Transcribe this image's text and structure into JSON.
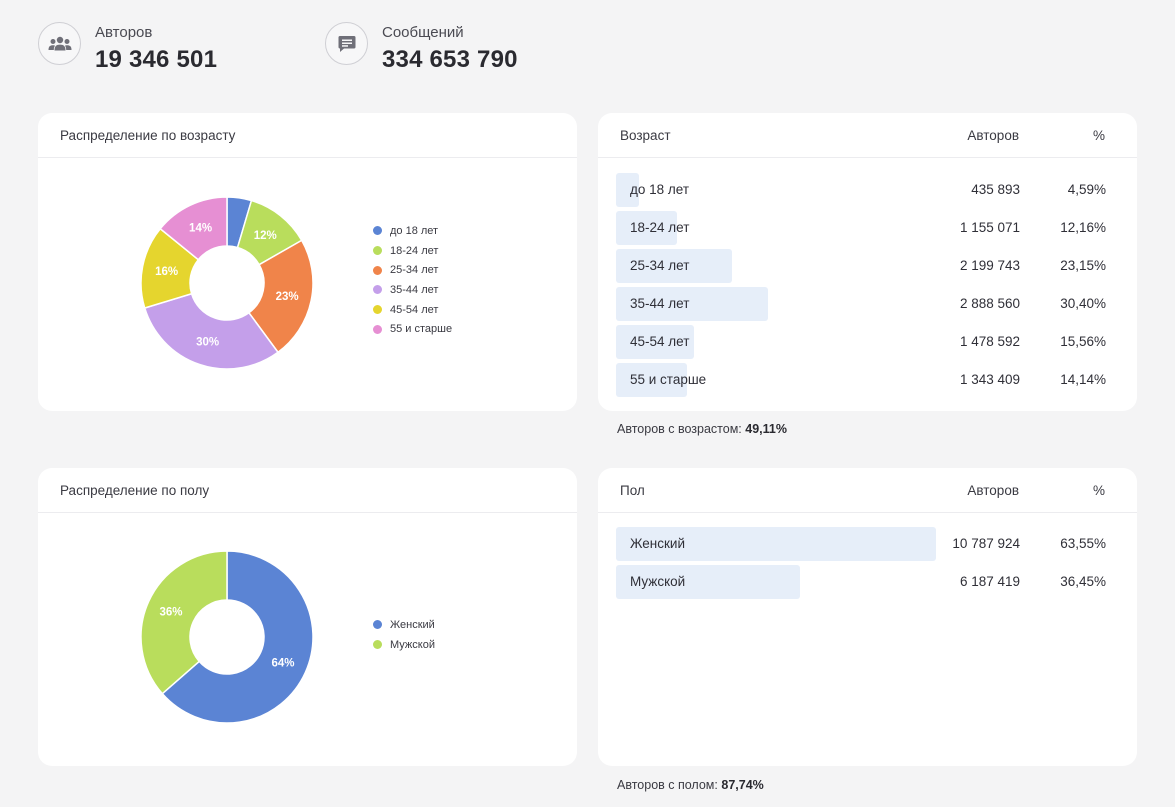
{
  "stats": {
    "authors": {
      "label": "Авторов",
      "value": "19 346 501",
      "icon": "users-icon"
    },
    "messages": {
      "label": "Сообщений",
      "value": "334 653 790",
      "icon": "message-icon"
    }
  },
  "age_chart": {
    "title": "Распределение по возрасту"
  },
  "gender_chart": {
    "title": "Распределение по полу"
  },
  "age_table": {
    "col_name": "Возраст",
    "col_authors": "Авторов",
    "col_percent": "%",
    "rows": [
      {
        "name": "до 18 лет",
        "authors": "435 893",
        "percent": "4,59%",
        "share": 0.0459
      },
      {
        "name": "18-24 лет",
        "authors": "1 155 071",
        "percent": "12,16%",
        "share": 0.1216
      },
      {
        "name": "25-34 лет",
        "authors": "2 199 743",
        "percent": "23,15%",
        "share": 0.2315
      },
      {
        "name": "35-44 лет",
        "authors": "2 888 560",
        "percent": "30,40%",
        "share": 0.304
      },
      {
        "name": "45-54 лет",
        "authors": "1 478 592",
        "percent": "15,56%",
        "share": 0.1556
      },
      {
        "name": "55 и старше",
        "authors": "1 343 409",
        "percent": "14,14%",
        "share": 0.1414
      }
    ],
    "footnote_label": "Авторов с возрастом:",
    "footnote_value": "49,11%"
  },
  "gender_table": {
    "col_name": "Пол",
    "col_authors": "Авторов",
    "col_percent": "%",
    "rows": [
      {
        "name": "Женский",
        "authors": "10 787 924",
        "percent": "63,55%",
        "share": 0.6355
      },
      {
        "name": "Мужской",
        "authors": "6 187 419",
        "percent": "36,45%",
        "share": 0.3645
      }
    ],
    "footnote_label": "Авторов с полом:",
    "footnote_value": "87,74%"
  },
  "chart_data": [
    {
      "type": "pie",
      "title": "Распределение по возрасту",
      "categories": [
        "до 18 лет",
        "18-24 лет",
        "25-34 лет",
        "35-44 лет",
        "45-54 лет",
        "55 и старше"
      ],
      "values": [
        4.59,
        12.16,
        23.15,
        30.4,
        15.56,
        14.14
      ],
      "data_labels": [
        "",
        "12%",
        "23%",
        "30%",
        "16%",
        "14%"
      ],
      "colors": [
        "#5b84d4",
        "#b9dd5c",
        "#f0844a",
        "#c49fea",
        "#e5d52e",
        "#e68fd3"
      ],
      "legend": "right"
    },
    {
      "type": "pie",
      "title": "Распределение по полу",
      "categories": [
        "Женский",
        "Мужской"
      ],
      "values": [
        63.55,
        36.45
      ],
      "data_labels": [
        "64%",
        "36%"
      ],
      "colors": [
        "#5b84d4",
        "#b9dd5c"
      ],
      "legend": "right"
    }
  ]
}
